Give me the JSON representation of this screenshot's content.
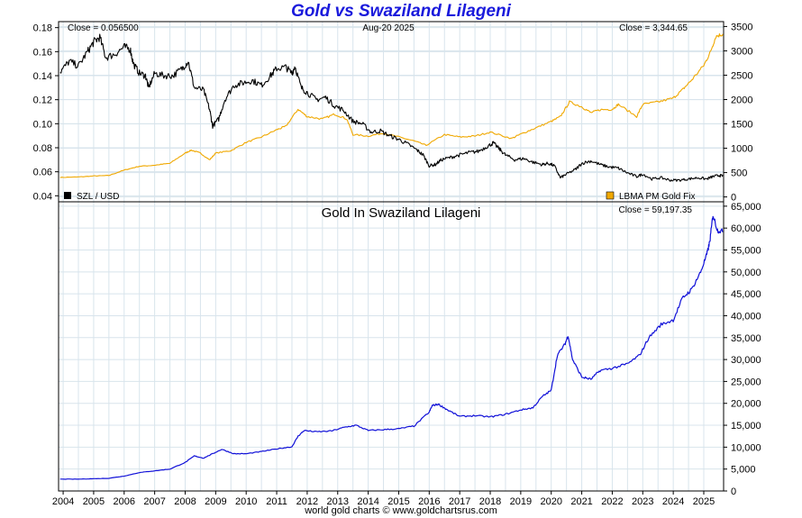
{
  "page": {
    "title": "Gold vs Swaziland Lilageni",
    "footer": "world gold charts © www.goldchartsrus.com"
  },
  "colors": {
    "szl_line": "#000000",
    "gold_usd_line": "#f0a800",
    "gold_szl_line": "#1010d8",
    "grid": "#d8e4ec",
    "title": "#1a1adc"
  },
  "chart_data": [
    {
      "type": "line",
      "top_left_label": "Close = 0.056500",
      "date_label": "Aug-20  2025",
      "top_right_label": "Close = 3,344.65",
      "x_ticks": [
        "2004",
        "2005",
        "2006",
        "2007",
        "2008",
        "2009",
        "2010",
        "2011",
        "2012",
        "2013",
        "2014",
        "2015",
        "2016",
        "2017",
        "2018",
        "2019",
        "2020",
        "2021",
        "2022",
        "2023",
        "2024",
        "2025"
      ],
      "xlim": [
        2003.85,
        2025.65
      ],
      "left_axis": {
        "ylim": [
          0.035,
          0.185
        ],
        "ticks": [
          "0.04",
          "0.06",
          "0.08",
          "0.10",
          "0.12",
          "0.14",
          "0.16",
          "0.18"
        ],
        "tick_values": [
          0.04,
          0.06,
          0.08,
          0.1,
          0.12,
          0.14,
          0.16,
          0.18
        ]
      },
      "right_axis": {
        "ylim": [
          -100,
          3600
        ],
        "ticks": [
          "0",
          "500",
          "1000",
          "1500",
          "2000",
          "2500",
          "3000",
          "3500"
        ],
        "tick_values": [
          0,
          500,
          1000,
          1500,
          2000,
          2500,
          3000,
          3500
        ]
      },
      "grid": true,
      "series": [
        {
          "name": "SZL / USD",
          "axis": "left",
          "legend_position": "bottom-left",
          "x": [
            2003.9,
            2004.2,
            2004.5,
            2004.8,
            2005.0,
            2005.2,
            2005.4,
            2005.7,
            2006.0,
            2006.2,
            2006.3,
            2006.5,
            2006.7,
            2006.8,
            2007.0,
            2007.3,
            2007.6,
            2007.9,
            2008.1,
            2008.3,
            2008.6,
            2008.8,
            2008.9,
            2009.1,
            2009.3,
            2009.6,
            2009.9,
            2010.2,
            2010.5,
            2010.8,
            2011.0,
            2011.3,
            2011.5,
            2011.6,
            2011.8,
            2012.0,
            2012.3,
            2012.6,
            2012.9,
            2013.2,
            2013.5,
            2013.8,
            2014.1,
            2014.4,
            2014.7,
            2015.0,
            2015.3,
            2015.6,
            2015.8,
            2016.0,
            2016.2,
            2016.4,
            2016.7,
            2017.0,
            2017.3,
            2017.6,
            2017.9,
            2018.1,
            2018.3,
            2018.5,
            2018.8,
            2019.1,
            2019.4,
            2019.7,
            2019.9,
            2020.1,
            2020.3,
            2020.5,
            2020.8,
            2021.0,
            2021.3,
            2021.6,
            2021.9,
            2022.2,
            2022.5,
            2022.8,
            2023.0,
            2023.3,
            2023.6,
            2023.9,
            2024.2,
            2024.5,
            2024.8,
            2025.1,
            2025.3,
            2025.5,
            2025.63
          ],
          "y": [
            0.143,
            0.152,
            0.148,
            0.16,
            0.168,
            0.172,
            0.155,
            0.158,
            0.164,
            0.162,
            0.15,
            0.142,
            0.14,
            0.13,
            0.142,
            0.14,
            0.14,
            0.146,
            0.152,
            0.13,
            0.128,
            0.112,
            0.098,
            0.104,
            0.12,
            0.132,
            0.134,
            0.136,
            0.132,
            0.14,
            0.146,
            0.147,
            0.142,
            0.148,
            0.13,
            0.126,
            0.12,
            0.122,
            0.115,
            0.111,
            0.102,
            0.1,
            0.093,
            0.094,
            0.09,
            0.087,
            0.083,
            0.078,
            0.074,
            0.065,
            0.066,
            0.07,
            0.072,
            0.074,
            0.076,
            0.077,
            0.081,
            0.084,
            0.079,
            0.074,
            0.07,
            0.071,
            0.068,
            0.066,
            0.067,
            0.065,
            0.055,
            0.058,
            0.062,
            0.067,
            0.069,
            0.066,
            0.064,
            0.063,
            0.059,
            0.056,
            0.058,
            0.054,
            0.055,
            0.053,
            0.053,
            0.054,
            0.055,
            0.054,
            0.056,
            0.057,
            0.0565
          ]
        },
        {
          "name": "LBMA PM Gold Fix",
          "axis": "right",
          "legend_position": "bottom-right",
          "x": [
            2003.9,
            2004.5,
            2005.0,
            2005.5,
            2006.0,
            2006.5,
            2007.0,
            2007.5,
            2008.0,
            2008.2,
            2008.5,
            2008.8,
            2009.0,
            2009.5,
            2010.0,
            2010.5,
            2011.0,
            2011.3,
            2011.7,
            2012.0,
            2012.5,
            2012.9,
            2013.3,
            2013.5,
            2014.0,
            2014.5,
            2015.0,
            2015.5,
            2015.9,
            2016.5,
            2017.0,
            2017.5,
            2018.0,
            2018.7,
            2019.0,
            2019.5,
            2020.0,
            2020.3,
            2020.6,
            2021.0,
            2021.3,
            2021.6,
            2022.0,
            2022.2,
            2022.8,
            2023.0,
            2023.5,
            2024.0,
            2024.3,
            2024.6,
            2025.0,
            2025.2,
            2025.4,
            2025.63
          ],
          "y": [
            400,
            410,
            430,
            440,
            550,
            630,
            650,
            690,
            900,
            960,
            900,
            760,
            900,
            950,
            1120,
            1230,
            1380,
            1450,
            1800,
            1650,
            1600,
            1700,
            1600,
            1280,
            1250,
            1310,
            1230,
            1150,
            1060,
            1280,
            1230,
            1250,
            1330,
            1200,
            1290,
            1420,
            1550,
            1650,
            1950,
            1850,
            1730,
            1790,
            1800,
            1900,
            1650,
            1900,
            1950,
            2030,
            2200,
            2400,
            2700,
            2950,
            3300,
            3345
          ]
        }
      ]
    },
    {
      "type": "line",
      "title": "Gold In Swaziland Lilageni",
      "top_right_label": "Close = 59,197.35",
      "x_ticks": [
        "2004",
        "2005",
        "2006",
        "2007",
        "2008",
        "2009",
        "2010",
        "2011",
        "2012",
        "2013",
        "2014",
        "2015",
        "2016",
        "2017",
        "2018",
        "2019",
        "2020",
        "2021",
        "2022",
        "2023",
        "2024",
        "2025"
      ],
      "xlim": [
        2003.85,
        2025.65
      ],
      "ylim": [
        0,
        66000
      ],
      "y_ticks": [
        "0",
        "5,000",
        "10,000",
        "15,000",
        "20,000",
        "25,000",
        "30,000",
        "35,000",
        "40,000",
        "45,000",
        "50,000",
        "55,000",
        "60,000",
        "65,000"
      ],
      "y_tick_values": [
        0,
        5000,
        10000,
        15000,
        20000,
        25000,
        30000,
        35000,
        40000,
        45000,
        50000,
        55000,
        60000,
        65000
      ],
      "grid": true,
      "series": [
        {
          "x": [
            2003.9,
            2004.5,
            2005.0,
            2005.5,
            2006.0,
            2006.5,
            2007.0,
            2007.5,
            2008.0,
            2008.3,
            2008.6,
            2008.9,
            2009.2,
            2009.6,
            2010.0,
            2010.5,
            2011.0,
            2011.5,
            2011.7,
            2011.9,
            2012.3,
            2012.8,
            2013.2,
            2013.6,
            2014.0,
            2014.5,
            2015.0,
            2015.5,
            2016.0,
            2016.1,
            2016.3,
            2016.6,
            2017.0,
            2017.5,
            2018.0,
            2018.5,
            2019.0,
            2019.4,
            2019.7,
            2020.0,
            2020.2,
            2020.45,
            2020.55,
            2020.7,
            2021.0,
            2021.3,
            2021.6,
            2022.0,
            2022.5,
            2022.9,
            2023.2,
            2023.6,
            2024.0,
            2024.3,
            2024.6,
            2024.9,
            2025.1,
            2025.2,
            2025.3,
            2025.45,
            2025.63
          ],
          "y": [
            2700,
            2700,
            2800,
            2900,
            3400,
            4200,
            4600,
            5000,
            6500,
            8000,
            7500,
            8500,
            9500,
            8500,
            8500,
            9000,
            9600,
            10100,
            12500,
            13800,
            13500,
            13700,
            14500,
            15000,
            13800,
            14000,
            14200,
            14800,
            18000,
            19500,
            19800,
            18500,
            17000,
            17200,
            16900,
            17500,
            18500,
            19000,
            21500,
            23000,
            31000,
            33500,
            35500,
            30000,
            26000,
            25500,
            27500,
            28000,
            29000,
            31000,
            35000,
            38000,
            39000,
            44000,
            46000,
            50000,
            54000,
            57000,
            63000,
            59500,
            59197
          ]
        }
      ]
    }
  ]
}
